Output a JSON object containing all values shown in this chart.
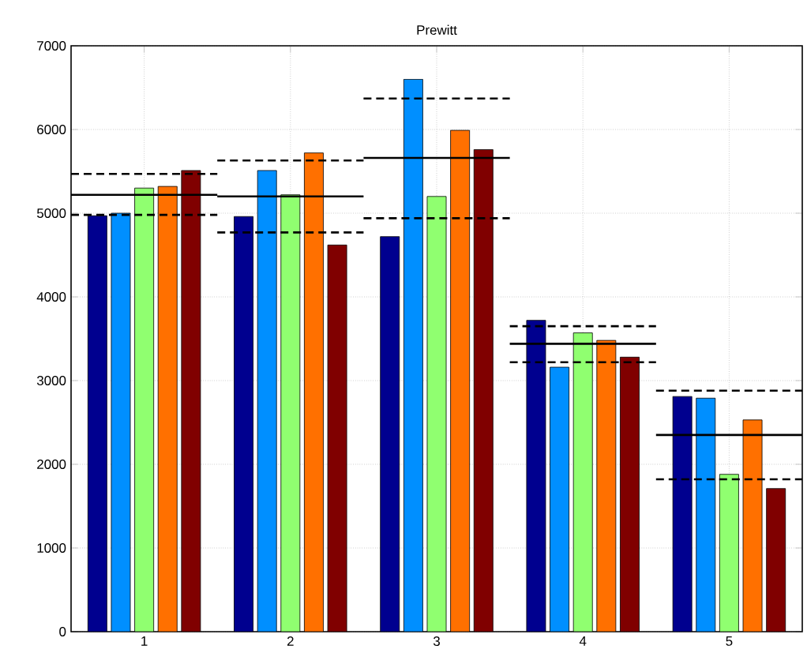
{
  "chart_data": {
    "type": "bar",
    "title": "Prewitt",
    "x": [
      1,
      2,
      3,
      4,
      5
    ],
    "xlim": [
      0.5,
      5.5
    ],
    "xticks": [
      1,
      2,
      3,
      4,
      5
    ],
    "ylim": [
      0,
      7000
    ],
    "yticks": [
      0,
      1000,
      2000,
      3000,
      4000,
      5000,
      6000,
      7000
    ],
    "grid": true,
    "series": [
      {
        "color": "#00008f",
        "values": [
          4970,
          4960,
          4720,
          3720,
          2810
        ]
      },
      {
        "color": "#008fff",
        "values": [
          5000,
          5510,
          6600,
          3160,
          2790
        ]
      },
      {
        "color": "#90ff70",
        "values": [
          5300,
          5220,
          5200,
          3570,
          1880
        ]
      },
      {
        "color": "#ff7000",
        "values": [
          5320,
          5720,
          5990,
          3480,
          2530
        ]
      },
      {
        "color": "#800000",
        "values": [
          5510,
          4620,
          5760,
          3280,
          1710
        ]
      },
      {
        "type": "line",
        "color": "#000000",
        "line_style": "solid",
        "x": [
          0.5,
          1.5,
          1.5,
          2.5,
          2.5,
          3.5,
          3.5,
          4.5,
          4.5,
          5.5
        ],
        "values": [
          5220,
          5220,
          5200,
          5200,
          5660,
          5660,
          3440,
          3440,
          2350,
          2350
        ]
      },
      {
        "type": "line",
        "color": "#000000",
        "line_style": "dashed",
        "x": [
          0.5,
          1.5,
          1.5,
          2.5,
          2.5,
          3.5,
          3.5,
          4.5,
          4.5,
          5.5
        ],
        "values": [
          5470,
          5470,
          5630,
          5630,
          6370,
          6370,
          3650,
          3650,
          2880,
          2880
        ]
      },
      {
        "type": "line",
        "color": "#000000",
        "line_style": "dashed",
        "x": [
          0.5,
          1.5,
          1.5,
          2.5,
          2.5,
          3.5,
          3.5,
          4.5,
          4.5,
          5.5
        ],
        "values": [
          4980,
          4980,
          4770,
          4770,
          4940,
          4940,
          3220,
          3220,
          1820,
          1820
        ]
      }
    ]
  }
}
